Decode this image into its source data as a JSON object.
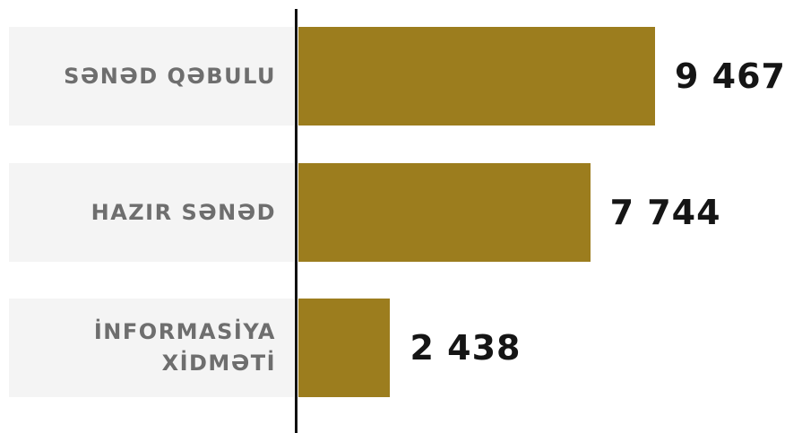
{
  "chart_data": {
    "type": "bar",
    "orientation": "horizontal",
    "categories": [
      "SƏNƏD QƏBULU",
      "HAZIR SƏNƏD",
      "İNFORMASİYA XİDMƏTİ"
    ],
    "values": [
      9467,
      7744,
      2438
    ],
    "value_labels": [
      "9 467",
      "7 744",
      "2 438"
    ],
    "color": "#9c7d1e"
  }
}
